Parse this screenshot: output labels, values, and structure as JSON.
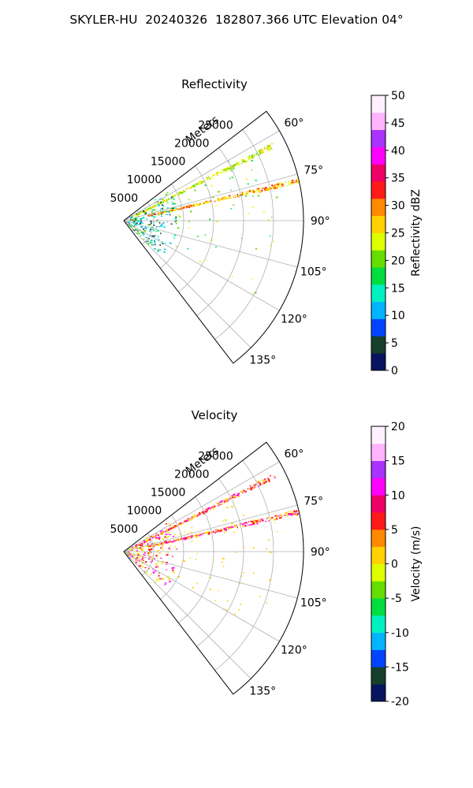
{
  "figure_title": "SKYLER-HU  20240326  182807.366 UTC Elevation 04°",
  "chart_data": [
    {
      "type": "polar-sector",
      "title": "Reflectivity",
      "radial_label": "Meters",
      "radial_ticks": [
        5000,
        10000,
        15000,
        20000,
        25000
      ],
      "radial_max": 30000,
      "angle_ticks": [
        "60°",
        "75°",
        "90°",
        "105°",
        "120°",
        "135°"
      ],
      "angle_range_deg": [
        52.5,
        142.5
      ],
      "grid": true,
      "colorbar": {
        "label": "Reflectivity dBZ",
        "ticks": [
          "0",
          "5",
          "10",
          "15",
          "20",
          "25",
          "30",
          "35",
          "40",
          "45",
          "50"
        ],
        "range": [
          0,
          50
        ],
        "colors": [
          "#08155e",
          "#163f2c",
          "#0044ff",
          "#00b4ff",
          "#00f0c0",
          "#00dd40",
          "#66dd00",
          "#ddff00",
          "#ffd200",
          "#ff8a00",
          "#ff1a1a",
          "#ee0066",
          "#ff00ff",
          "#aa33ff",
          "#ffb4ff",
          "#fff0ff"
        ]
      },
      "echoes": [
        {
          "desc": "radial band 63deg",
          "az": 63,
          "r": [
            2000,
            28000
          ],
          "values_dBZ": [
            20,
            22,
            25
          ]
        },
        {
          "desc": "radial band 77deg",
          "az": 77,
          "r": [
            4000,
            30000
          ],
          "values_dBZ": [
            22,
            25,
            28,
            30,
            33
          ]
        },
        {
          "desc": "near-range clutter",
          "az": [
            55,
            135
          ],
          "r": [
            500,
            9000
          ],
          "values_dBZ": [
            5,
            10,
            15,
            20
          ]
        },
        {
          "desc": "scattered echoes",
          "az": [
            60,
            120
          ],
          "r": [
            9000,
            26000
          ],
          "values_dBZ": [
            18,
            20,
            22
          ]
        }
      ]
    },
    {
      "type": "polar-sector",
      "title": "Velocity",
      "radial_label": "Meters",
      "radial_ticks": [
        5000,
        10000,
        15000,
        20000,
        25000
      ],
      "radial_max": 30000,
      "angle_ticks": [
        "60°",
        "75°",
        "90°",
        "105°",
        "120°",
        "135°"
      ],
      "angle_range_deg": [
        52.5,
        142.5
      ],
      "grid": true,
      "colorbar": {
        "label": "Velocity (m/s)",
        "ticks": [
          "-20",
          "-15",
          "-10",
          "-5",
          "0",
          "5",
          "10",
          "15",
          "20"
        ],
        "range": [
          -20,
          20
        ],
        "colors": [
          "#08155e",
          "#163f2c",
          "#0044ff",
          "#00b4ff",
          "#00f0c0",
          "#00dd40",
          "#66dd00",
          "#ddff00",
          "#ffd200",
          "#ff8a00",
          "#ff1a1a",
          "#ee0066",
          "#ff00ff",
          "#aa33ff",
          "#ffb4ff",
          "#fff0ff"
        ]
      },
      "echoes": [
        {
          "desc": "radial band 63deg",
          "az": 63,
          "r": [
            2000,
            28000
          ],
          "values_ms": [
            0,
            5,
            10
          ]
        },
        {
          "desc": "radial band 77deg",
          "az": 77,
          "r": [
            4000,
            30000
          ],
          "values_ms": [
            0,
            5,
            10
          ]
        },
        {
          "desc": "near-range clutter",
          "az": [
            55,
            135
          ],
          "r": [
            500,
            9000
          ],
          "values_ms": [
            -2,
            0,
            5,
            10
          ]
        },
        {
          "desc": "scattered echoes",
          "az": [
            60,
            120
          ],
          "r": [
            9000,
            26000
          ],
          "values_ms": [
            0,
            2
          ]
        }
      ]
    }
  ]
}
